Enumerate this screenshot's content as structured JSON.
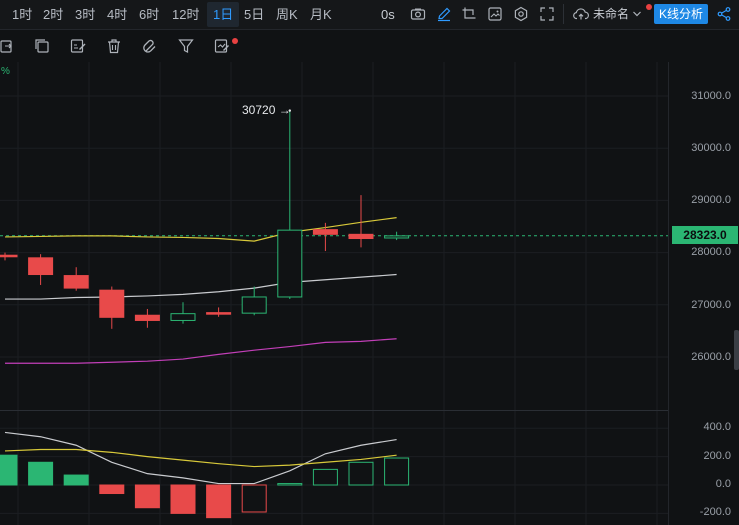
{
  "toolbar": {
    "timeframes": [
      "1时",
      "2时",
      "3时",
      "4时",
      "6时",
      "12时",
      "1日",
      "5日",
      "周K",
      "月K"
    ],
    "active_timeframe": "1日",
    "zero_seconds": "0s",
    "layout_name": "未命名",
    "kline_button": "K线分析"
  },
  "chart": {
    "percent_label": "%",
    "max_label": "30720 →",
    "current_price": "28323.0",
    "price_ticks": [
      "31000.0",
      "30000.0",
      "29000.0",
      "28000.0",
      "27000.0",
      "26000.0"
    ],
    "macd_ticks": [
      "400.0",
      "200.0",
      "0.0",
      "-200.0"
    ]
  },
  "chart_data": {
    "type": "candlestick",
    "candles": [
      {
        "open": 27950,
        "high": 28000,
        "low": 27850,
        "close": 27920
      },
      {
        "open": 27900,
        "high": 27970,
        "low": 27380,
        "close": 27580
      },
      {
        "open": 27560,
        "high": 27720,
        "low": 27270,
        "close": 27320
      },
      {
        "open": 27280,
        "high": 27350,
        "low": 26540,
        "close": 26760
      },
      {
        "open": 26800,
        "high": 26920,
        "low": 26560,
        "close": 26700
      },
      {
        "open": 26700,
        "high": 27050,
        "low": 26640,
        "close": 26830
      },
      {
        "open": 26850,
        "high": 26950,
        "low": 26770,
        "close": 26820
      },
      {
        "open": 26840,
        "high": 27350,
        "low": 26800,
        "close": 27150
      },
      {
        "open": 27150,
        "high": 30720,
        "low": 27110,
        "close": 28430
      },
      {
        "open": 28440,
        "high": 28570,
        "low": 28030,
        "close": 28350
      },
      {
        "open": 28350,
        "high": 29100,
        "low": 28100,
        "close": 28270
      },
      {
        "open": 28280,
        "high": 28400,
        "low": 28240,
        "close": 28320
      }
    ],
    "ma_yellow": [
      28300,
      28310,
      28320,
      28320,
      28300,
      28290,
      28270,
      28220,
      28390,
      28480,
      28580,
      28670
    ],
    "ma_white": [
      27110,
      27110,
      27140,
      27150,
      27170,
      27200,
      27250,
      27320,
      27430,
      27480,
      27530,
      27580
    ],
    "ma_pink": [
      25880,
      25880,
      25880,
      25900,
      25920,
      25960,
      26050,
      26130,
      26200,
      26280,
      26300,
      26350
    ],
    "macd_hist": [
      210,
      160,
      70,
      -60,
      -160,
      -200,
      -230,
      -190,
      10,
      110,
      160,
      190
    ],
    "macd_dif": [
      370,
      340,
      280,
      160,
      80,
      50,
      10,
      10,
      100,
      220,
      280,
      320
    ],
    "macd_dea": [
      240,
      250,
      250,
      230,
      200,
      175,
      150,
      130,
      140,
      160,
      180,
      210
    ],
    "current_price": 28323,
    "max_price": 30720
  }
}
